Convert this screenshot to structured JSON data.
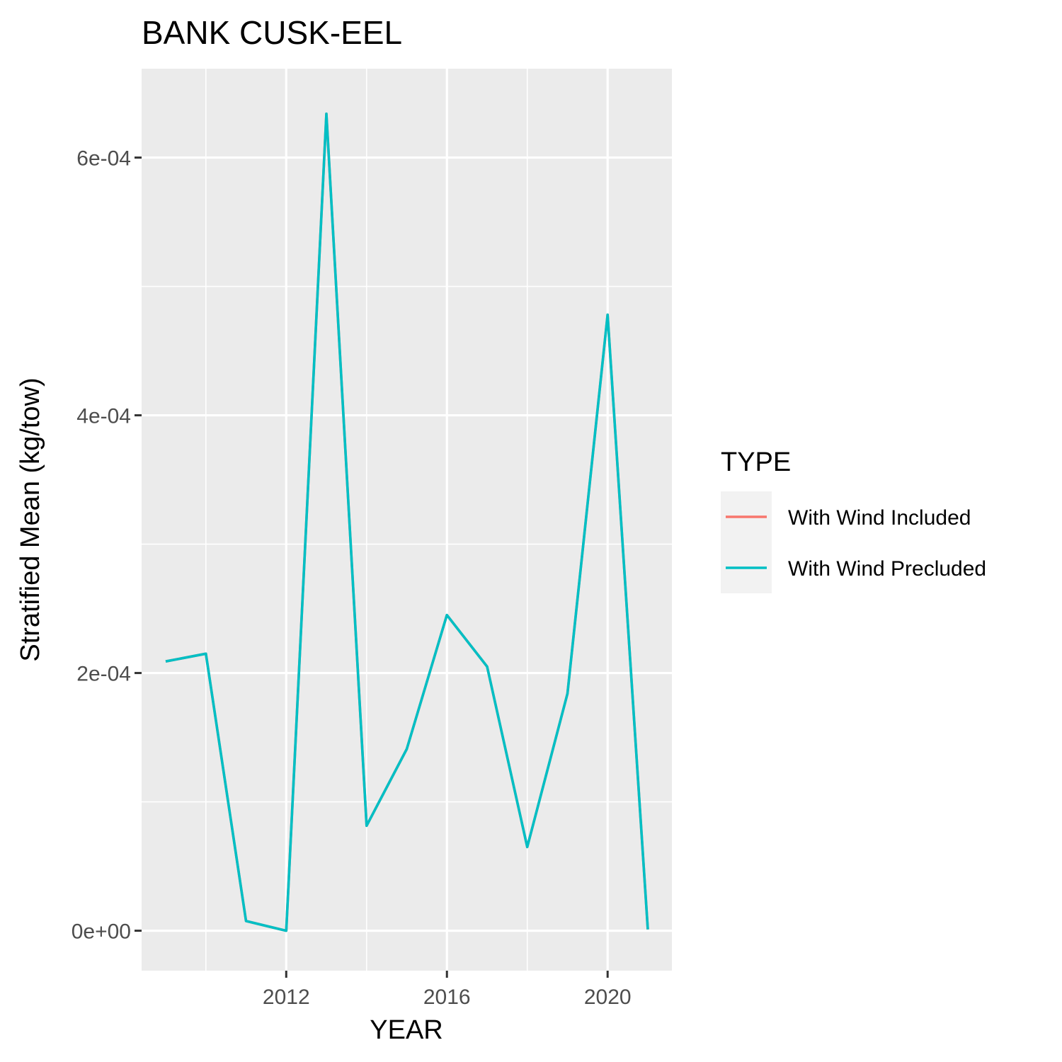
{
  "chart_data": {
    "type": "line",
    "title": "BANK CUSK-EEL",
    "xlabel": "YEAR",
    "ylabel": "Stratified Mean (kg/tow)",
    "xlim": [
      2008.4,
      2021.6
    ],
    "ylim": [
      -3.1e-05,
      0.000669
    ],
    "x_ticks": [
      {
        "value": 2012,
        "label": "2012"
      },
      {
        "value": 2016,
        "label": "2016"
      },
      {
        "value": 2020,
        "label": "2020"
      }
    ],
    "y_ticks": [
      {
        "value": 0,
        "label": "0e+00"
      },
      {
        "value": 0.0002,
        "label": "2e-04"
      },
      {
        "value": 0.0004,
        "label": "4e-04"
      },
      {
        "value": 0.0006,
        "label": "6e-04"
      }
    ],
    "x_minor": [
      2010,
      2014,
      2018
    ],
    "y_minor": [
      0.0001,
      0.0003,
      0.0005
    ],
    "grid": true,
    "legend": {
      "title": "TYPE",
      "position": "right",
      "entries": [
        {
          "name": "With Wind Included",
          "color": "#F8766D"
        },
        {
          "name": "With Wind Precluded",
          "color": "#00BFC4"
        }
      ]
    },
    "series": [
      {
        "name": "With Wind Included",
        "color": "#F8766D",
        "x": [
          2009,
          2010,
          2011,
          2012,
          2013,
          2014,
          2015,
          2016,
          2017,
          2018,
          2019,
          2020,
          2021
        ],
        "values": [
          0.000209,
          0.000215,
          7.5e-06,
          0.0,
          0.000634,
          8.15e-05,
          0.000141,
          0.000245,
          0.000205,
          6.5e-05,
          0.000184,
          0.000478,
          1e-06
        ]
      },
      {
        "name": "With Wind Precluded",
        "color": "#00BFC4",
        "x": [
          2009,
          2010,
          2011,
          2012,
          2013,
          2014,
          2015,
          2016,
          2017,
          2018,
          2019,
          2020,
          2021
        ],
        "values": [
          0.000209,
          0.000215,
          7.5e-06,
          0.0,
          0.000634,
          8.15e-05,
          0.000141,
          0.000245,
          0.000205,
          6.5e-05,
          0.000184,
          0.000478,
          1e-06
        ]
      }
    ]
  }
}
